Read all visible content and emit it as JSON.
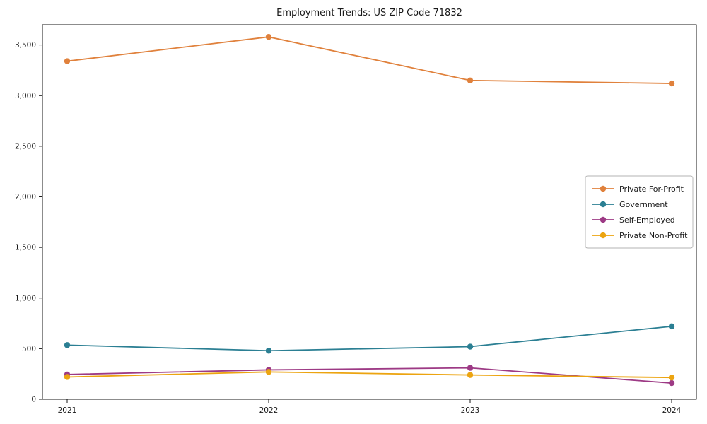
{
  "figure": {
    "title": "Employment Trends: US ZIP Code 71832"
  },
  "chart_data": {
    "type": "line",
    "title": "Employment Trends: US ZIP Code 71832",
    "xlabel": "",
    "ylabel": "",
    "x": [
      "2021",
      "2022",
      "2023",
      "2024"
    ],
    "series": [
      {
        "name": "Private For-Profit",
        "color": "#e0813c",
        "values": [
          3340,
          3580,
          3150,
          3120
        ]
      },
      {
        "name": "Government",
        "color": "#2b7f93",
        "values": [
          535,
          480,
          520,
          720
        ]
      },
      {
        "name": "Self-Employed",
        "color": "#9d3a85",
        "values": [
          245,
          290,
          310,
          160
        ]
      },
      {
        "name": "Private Non-Profit",
        "color": "#eca410",
        "values": [
          220,
          270,
          240,
          215
        ]
      }
    ],
    "ylim": [
      0,
      3700
    ],
    "yticks": [
      0,
      500,
      1000,
      1500,
      2000,
      2500,
      3000,
      3500
    ],
    "grid": false,
    "legend_position": "center right",
    "marker": "circle",
    "axis_color": "#000000",
    "text_color": "#1a1a1a",
    "legend_border_color": "#b3b3b3",
    "background_color": "#ffffff"
  }
}
